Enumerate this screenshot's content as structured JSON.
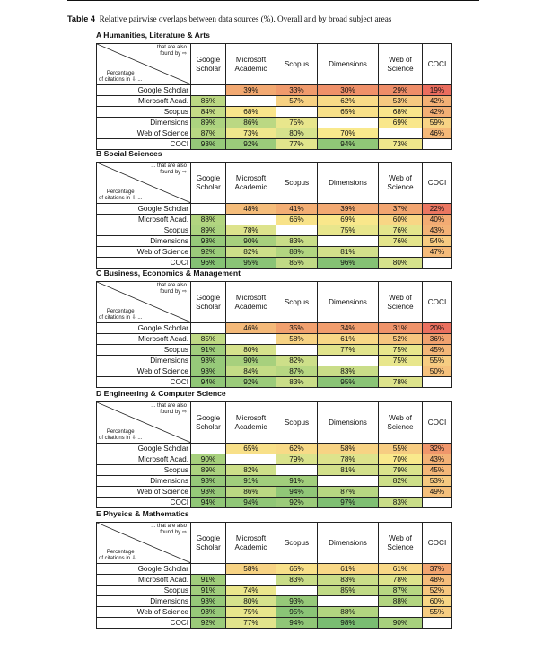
{
  "caption": {
    "label": "Table 4",
    "text": "Relative pairwise overlaps between data sources (%). Overall and by broad subject areas"
  },
  "corner": {
    "top": "... that are also",
    "top2": "found by ⇨",
    "bottom": "Percentage",
    "bottom2": "of citations in ⇩ ..."
  },
  "columns": [
    "Google Scholar",
    "Microsoft Academic",
    "Scopus",
    "Dimensions",
    "Web of Science",
    "COCI"
  ],
  "column_header_lines": [
    [
      "Google",
      "Scholar"
    ],
    [
      "Microsoft",
      "Academic"
    ],
    [
      "Scopus"
    ],
    [
      "Dimensions"
    ],
    [
      "Web of",
      "Science"
    ],
    [
      "COCI"
    ]
  ],
  "rows": [
    "Google Scholar",
    "Microsoft Acad.",
    "Scopus",
    "Dimensions",
    "Web of Science",
    "COCI"
  ],
  "sections": [
    {
      "title": "A Humanities, Literature & Arts",
      "values": [
        [
          "",
          "39%",
          "33%",
          "30%",
          "29%",
          "19%"
        ],
        [
          "86%",
          "",
          "57%",
          "62%",
          "53%",
          "42%"
        ],
        [
          "84%",
          "68%",
          "",
          "65%",
          "68%",
          "42%"
        ],
        [
          "89%",
          "86%",
          "75%",
          "",
          "69%",
          "59%"
        ],
        [
          "87%",
          "73%",
          "80%",
          "70%",
          "",
          "46%"
        ],
        [
          "93%",
          "92%",
          "77%",
          "94%",
          "73%",
          ""
        ]
      ]
    },
    {
      "title": "B Social Sciences",
      "values": [
        [
          "",
          "48%",
          "41%",
          "39%",
          "37%",
          "22%"
        ],
        [
          "88%",
          "",
          "66%",
          "69%",
          "60%",
          "40%"
        ],
        [
          "89%",
          "78%",
          "",
          "75%",
          "76%",
          "43%"
        ],
        [
          "93%",
          "90%",
          "83%",
          "",
          "76%",
          "54%"
        ],
        [
          "92%",
          "82%",
          "88%",
          "81%",
          "",
          "47%"
        ],
        [
          "96%",
          "95%",
          "85%",
          "96%",
          "80%",
          ""
        ]
      ]
    },
    {
      "title": "C Business, Economics & Management",
      "values": [
        [
          "",
          "46%",
          "35%",
          "34%",
          "31%",
          "20%"
        ],
        [
          "85%",
          "",
          "58%",
          "61%",
          "52%",
          "36%"
        ],
        [
          "91%",
          "80%",
          "",
          "77%",
          "75%",
          "45%"
        ],
        [
          "93%",
          "90%",
          "82%",
          "",
          "75%",
          "55%"
        ],
        [
          "93%",
          "84%",
          "87%",
          "83%",
          "",
          "50%"
        ],
        [
          "94%",
          "92%",
          "83%",
          "95%",
          "78%",
          ""
        ]
      ]
    },
    {
      "title": "D Engineering & Computer Science",
      "values": [
        [
          "",
          "65%",
          "62%",
          "58%",
          "55%",
          "32%"
        ],
        [
          "90%",
          "",
          "79%",
          "78%",
          "70%",
          "43%"
        ],
        [
          "89%",
          "82%",
          "",
          "81%",
          "79%",
          "45%"
        ],
        [
          "93%",
          "91%",
          "91%",
          "",
          "82%",
          "53%"
        ],
        [
          "93%",
          "86%",
          "94%",
          "87%",
          "",
          "49%"
        ],
        [
          "94%",
          "94%",
          "92%",
          "97%",
          "83%",
          ""
        ]
      ]
    },
    {
      "title": "E Physics & Mathematics",
      "values": [
        [
          "",
          "58%",
          "65%",
          "61%",
          "61%",
          "37%"
        ],
        [
          "91%",
          "",
          "83%",
          "83%",
          "78%",
          "48%"
        ],
        [
          "91%",
          "74%",
          "",
          "85%",
          "87%",
          "52%"
        ],
        [
          "93%",
          "80%",
          "93%",
          "",
          "88%",
          "60%"
        ],
        [
          "93%",
          "75%",
          "95%",
          "88%",
          "",
          "55%"
        ],
        [
          "92%",
          "77%",
          "94%",
          "98%",
          "90%",
          ""
        ]
      ]
    }
  ]
}
